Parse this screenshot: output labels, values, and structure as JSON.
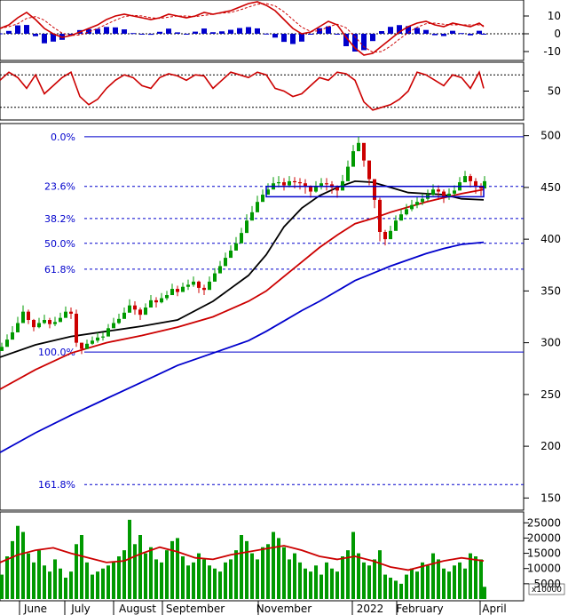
{
  "chart_data": [
    {
      "type": "line",
      "panel": "macd",
      "y_ticks": [
        10,
        0,
        -10
      ],
      "ylim": [
        -14,
        18
      ],
      "histogram_color": "#0000cc",
      "line_color": "#cc0000",
      "signal_color": "#cc0000",
      "x": [
        0,
        10,
        20,
        30,
        40,
        50,
        60,
        70,
        80,
        90,
        100,
        110,
        120,
        130,
        140,
        150,
        160,
        170,
        180,
        190,
        200,
        210,
        220,
        230,
        240,
        250,
        260,
        270,
        280,
        290,
        300,
        310,
        320,
        330,
        340,
        350,
        360,
        370,
        380,
        390,
        400,
        410,
        420,
        430,
        440,
        450,
        460,
        470,
        480,
        490,
        500,
        510,
        520,
        530,
        540,
        545
      ],
      "macd": [
        3,
        5,
        9,
        12,
        8,
        3,
        0,
        -2,
        -1,
        1,
        3,
        5,
        8,
        10,
        11,
        10,
        9,
        8,
        9,
        11,
        10,
        9,
        10,
        12,
        11,
        12,
        13,
        15,
        17,
        18,
        16,
        13,
        8,
        3,
        0,
        1,
        4,
        7,
        5,
        -2,
        -8,
        -12,
        -11,
        -7,
        -3,
        1,
        4,
        6,
        7,
        5,
        4,
        6,
        5,
        4,
        6,
        4
      ]
    },
    {
      "type": "line",
      "panel": "oscillator",
      "y_ticks": [
        50
      ],
      "ylim": [
        0,
        100
      ],
      "dotted_levels": [
        80,
        20
      ],
      "line_color": "#cc0000",
      "x": [
        0,
        10,
        20,
        30,
        40,
        50,
        60,
        70,
        80,
        90,
        100,
        110,
        120,
        130,
        140,
        150,
        160,
        170,
        180,
        190,
        200,
        210,
        220,
        230,
        240,
        250,
        260,
        270,
        280,
        290,
        300,
        310,
        320,
        330,
        340,
        350,
        360,
        370,
        380,
        390,
        400,
        410,
        420,
        430,
        440,
        450,
        460,
        470,
        480,
        490,
        500,
        510,
        520,
        530,
        540,
        545
      ],
      "values": [
        70,
        85,
        75,
        55,
        80,
        45,
        60,
        75,
        85,
        40,
        25,
        35,
        55,
        70,
        80,
        75,
        60,
        55,
        75,
        82,
        78,
        70,
        80,
        78,
        55,
        70,
        85,
        80,
        75,
        85,
        80,
        55,
        50,
        40,
        45,
        60,
        75,
        70,
        85,
        82,
        70,
        30,
        15,
        20,
        25,
        35,
        50,
        85,
        80,
        70,
        60,
        80,
        75,
        55,
        85,
        55
      ]
    },
    {
      "type": "line",
      "panel": "price",
      "y_ticks": [
        500,
        450,
        400,
        350,
        300,
        250,
        200,
        150
      ],
      "ylim": [
        140,
        510
      ],
      "fibonacci_levels": [
        {
          "label": "0.0%",
          "value": 499
        },
        {
          "label": "23.6%",
          "value": 451
        },
        {
          "label": "38.2%",
          "value": 420
        },
        {
          "label": "50.0%",
          "value": 396
        },
        {
          "label": "61.8%",
          "value": 371
        },
        {
          "label": "100.0%",
          "value": 291
        },
        {
          "label": "161.8%",
          "value": 163
        }
      ],
      "up_color": "#009900",
      "down_color": "#cc0000",
      "series": [
        {
          "color": "#000000",
          "x": [
            0,
            40,
            80,
            120,
            160,
            200,
            240,
            280,
            300,
            320,
            340,
            360,
            380,
            400,
            420,
            440,
            460,
            480,
            500,
            520,
            545
          ],
          "values": [
            286,
            298,
            306,
            311,
            316,
            322,
            340,
            365,
            385,
            412,
            430,
            442,
            450,
            456,
            455,
            450,
            445,
            444,
            443,
            439,
            438
          ]
        },
        {
          "color": "#cc0000",
          "x": [
            0,
            40,
            80,
            120,
            160,
            200,
            240,
            280,
            300,
            320,
            340,
            360,
            380,
            400,
            420,
            440,
            460,
            480,
            500,
            520,
            545
          ],
          "values": [
            255,
            274,
            290,
            300,
            307,
            315,
            325,
            340,
            350,
            364,
            378,
            392,
            404,
            415,
            420,
            426,
            431,
            436,
            440,
            444,
            448
          ]
        },
        {
          "color": "#0000cc",
          "x": [
            0,
            40,
            80,
            120,
            160,
            200,
            240,
            280,
            300,
            320,
            340,
            360,
            380,
            400,
            420,
            440,
            460,
            480,
            500,
            520,
            545
          ],
          "values": [
            194,
            213,
            230,
            246,
            262,
            278,
            290,
            302,
            311,
            321,
            331,
            340,
            350,
            360,
            367,
            374,
            380,
            386,
            391,
            395,
            397
          ]
        }
      ],
      "candles": {
        "x": [
          2,
          8,
          14,
          20,
          26,
          32,
          38,
          44,
          50,
          56,
          62,
          68,
          74,
          80,
          86,
          92,
          98,
          104,
          110,
          116,
          122,
          128,
          134,
          140,
          146,
          152,
          158,
          164,
          170,
          176,
          182,
          188,
          194,
          200,
          206,
          212,
          218,
          224,
          230,
          236,
          242,
          248,
          254,
          260,
          266,
          272,
          278,
          284,
          290,
          296,
          302,
          308,
          314,
          320,
          326,
          332,
          338,
          344,
          350,
          356,
          362,
          368,
          374,
          380,
          386,
          392,
          398,
          404,
          410,
          416,
          422,
          428,
          434,
          440,
          446,
          452,
          458,
          464,
          470,
          476,
          482,
          488,
          494,
          500,
          506,
          512,
          518,
          524,
          530,
          536,
          542,
          546
        ],
        "close": [
          296,
          303,
          310,
          319,
          330,
          322,
          315,
          319,
          322,
          318,
          320,
          324,
          330,
          328,
          300,
          294,
          299,
          302,
          305,
          306,
          314,
          319,
          323,
          329,
          336,
          332,
          327,
          334,
          341,
          339,
          343,
          346,
          352,
          349,
          354,
          356,
          359,
          353,
          351,
          359,
          367,
          374,
          382,
          389,
          396,
          406,
          418,
          426,
          436,
          443,
          448,
          454,
          455,
          452,
          456,
          455,
          454,
          451,
          446,
          451,
          454,
          453,
          450,
          447,
          456,
          470,
          485,
          493,
          476,
          458,
          438,
          407,
          400,
          408,
          418,
          424,
          429,
          433,
          436,
          439,
          443,
          448,
          446,
          441,
          444,
          447,
          455,
          461,
          456,
          451,
          449,
          456
        ],
        "high": [
          300,
          308,
          316,
          325,
          336,
          332,
          323,
          324,
          327,
          324,
          325,
          329,
          335,
          334,
          332,
          300,
          303,
          306,
          310,
          310,
          318,
          324,
          328,
          334,
          342,
          340,
          334,
          338,
          346,
          344,
          348,
          350,
          357,
          355,
          358,
          361,
          364,
          360,
          356,
          364,
          372,
          379,
          387,
          394,
          402,
          411,
          424,
          432,
          442,
          448,
          454,
          460,
          461,
          459,
          461,
          460,
          459,
          458,
          452,
          456,
          459,
          459,
          456,
          452,
          462,
          476,
          491,
          499,
          490,
          470,
          458,
          440,
          409,
          413,
          423,
          429,
          434,
          438,
          441,
          444,
          448,
          453,
          452,
          448,
          449,
          452,
          460,
          466,
          463,
          459,
          454,
          461
        ],
        "low": [
          292,
          299,
          306,
          315,
          326,
          318,
          311,
          314,
          318,
          314,
          316,
          320,
          326,
          323,
          296,
          289,
          294,
          298,
          300,
          302,
          309,
          315,
          318,
          324,
          331,
          327,
          322,
          329,
          336,
          334,
          338,
          341,
          347,
          345,
          349,
          351,
          354,
          348,
          346,
          354,
          362,
          369,
          377,
          384,
          391,
          401,
          413,
          421,
          430,
          437,
          443,
          448,
          450,
          447,
          450,
          449,
          448,
          444,
          440,
          445,
          448,
          447,
          444,
          440,
          450,
          464,
          479,
          485,
          470,
          452,
          430,
          398,
          394,
          401,
          412,
          418,
          423,
          427,
          430,
          433,
          437,
          442,
          438,
          435,
          438,
          441,
          449,
          455,
          450,
          444,
          442,
          450
        ],
        "open": [
          292,
          296,
          303,
          310,
          319,
          330,
          322,
          315,
          319,
          322,
          318,
          320,
          324,
          330,
          328,
          300,
          294,
          299,
          302,
          305,
          306,
          314,
          319,
          323,
          329,
          336,
          332,
          327,
          334,
          341,
          339,
          343,
          346,
          352,
          349,
          354,
          356,
          359,
          353,
          351,
          359,
          367,
          374,
          382,
          389,
          396,
          406,
          418,
          426,
          436,
          443,
          448,
          454,
          455,
          452,
          456,
          455,
          454,
          451,
          446,
          451,
          454,
          453,
          450,
          447,
          456,
          470,
          485,
          493,
          476,
          458,
          438,
          407,
          400,
          408,
          418,
          424,
          429,
          433,
          436,
          439,
          443,
          448,
          446,
          441,
          444,
          447,
          455,
          461,
          456,
          451,
          449
        ]
      }
    },
    {
      "type": "bar",
      "panel": "volume",
      "y_ticks": [
        25000,
        20000,
        15000,
        10000,
        5000
      ],
      "unit_label": "x10000",
      "ylim": [
        0,
        28000
      ],
      "bar_color": "#009900",
      "ma_color": "#cc0000",
      "x": [
        2,
        8,
        14,
        20,
        26,
        32,
        38,
        44,
        50,
        56,
        62,
        68,
        74,
        80,
        86,
        92,
        98,
        104,
        110,
        116,
        122,
        128,
        134,
        140,
        146,
        152,
        158,
        164,
        170,
        176,
        182,
        188,
        194,
        200,
        206,
        212,
        218,
        224,
        230,
        236,
        242,
        248,
        254,
        260,
        266,
        272,
        278,
        284,
        290,
        296,
        302,
        308,
        314,
        320,
        326,
        332,
        338,
        344,
        350,
        356,
        362,
        368,
        374,
        380,
        386,
        392,
        398,
        404,
        410,
        416,
        422,
        428,
        434,
        440,
        446,
        452,
        458,
        464,
        470,
        476,
        482,
        488,
        494,
        500,
        506,
        512,
        518,
        524,
        530,
        536,
        542,
        546
      ],
      "values": [
        8000,
        14000,
        19000,
        24000,
        22000,
        15000,
        12000,
        16000,
        11000,
        9000,
        13000,
        10000,
        7000,
        9000,
        18000,
        21000,
        12000,
        8000,
        9000,
        10000,
        11000,
        12000,
        14000,
        16000,
        26000,
        18000,
        21000,
        15000,
        17000,
        13000,
        12000,
        16000,
        19000,
        20000,
        14000,
        11000,
        12000,
        15000,
        13000,
        11000,
        10000,
        9000,
        12000,
        13000,
        16000,
        21000,
        19000,
        15000,
        13000,
        17000,
        18000,
        22000,
        20000,
        17000,
        13000,
        15000,
        12000,
        10000,
        9000,
        11000,
        8000,
        12000,
        10000,
        9000,
        14000,
        16000,
        22000,
        15000,
        12000,
        11000,
        13000,
        16000,
        8000,
        7000,
        6000,
        5000,
        8000,
        10000,
        9000,
        12000,
        11000,
        15000,
        13000,
        10000,
        9000,
        11000,
        12000,
        10000,
        15000,
        14000,
        13000,
        4000
      ],
      "ma_x": [
        0,
        20,
        40,
        60,
        80,
        100,
        120,
        140,
        160,
        180,
        200,
        220,
        240,
        260,
        280,
        300,
        320,
        340,
        360,
        380,
        400,
        420,
        440,
        460,
        480,
        500,
        520,
        545
      ],
      "ma": [
        12000,
        14500,
        16000,
        16800,
        15000,
        13500,
        12000,
        12500,
        15000,
        17000,
        15500,
        13500,
        13000,
        14500,
        15500,
        16500,
        17500,
        16000,
        14000,
        13000,
        14000,
        12500,
        10500,
        9500,
        11000,
        12500,
        13500,
        12500
      ]
    }
  ],
  "x_axis": {
    "months": [
      {
        "label": "June",
        "x": 40
      },
      {
        "label": "July",
        "x": 91
      },
      {
        "label": "August",
        "x": 155
      },
      {
        "label": "September",
        "x": 220
      },
      {
        "label": "November",
        "x": 320
      },
      {
        "label": "2022",
        "x": 417
      },
      {
        "label": "February",
        "x": 473
      },
      {
        "label": "April",
        "x": 557
      }
    ],
    "separators": [
      22,
      73,
      128,
      183,
      291,
      397,
      447,
      541
    ]
  },
  "box_annotation": {
    "y_low": 441,
    "y_high": 451,
    "x_start": 300,
    "x_end": 545,
    "color": "#0000cc"
  }
}
